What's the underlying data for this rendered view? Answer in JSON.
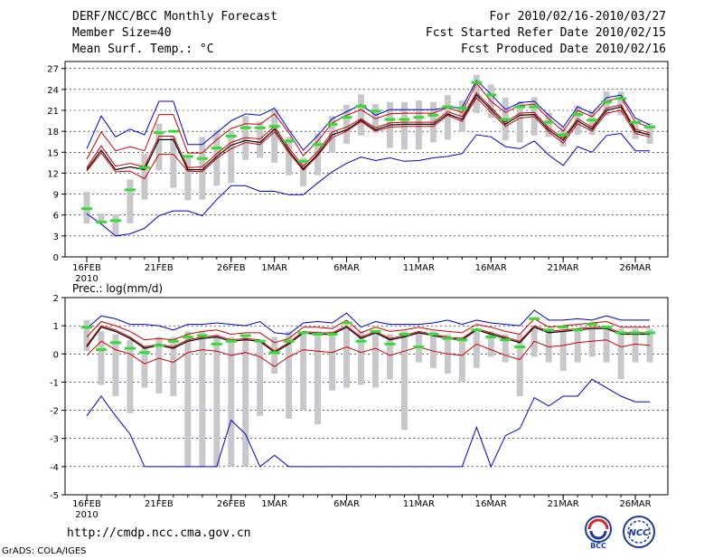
{
  "header": {
    "title": "DERF/NCC/BCC Monthly Forecast",
    "member_size": "Member Size=40",
    "variable": "Mean Surf. Temp.: °C",
    "period": "For 2010/02/16-2010/03/27",
    "refer": "Fcst Started Refer Date 2010/02/15",
    "produced": "Fcst Produced Date 2010/02/16"
  },
  "footer": {
    "url": "http://cmdp.ncc.cma.gov.cn",
    "grads": "GrADS: COLA/IGES",
    "logo1_text": "BCC",
    "logo2_text": "NCC"
  },
  "colors": {
    "mean": "#000000",
    "upper": "#0000cc",
    "lower": "#cc0000",
    "mid_red": "#cc0000",
    "box": "#c8c8cc",
    "obs": "#33dd33"
  },
  "chart_data": [
    {
      "type": "line",
      "title": "Mean Surf. Temp.: °C",
      "xlabel": "",
      "ylabel": "",
      "ylim": [
        0,
        28
      ],
      "yticks": [
        0,
        3,
        6,
        9,
        12,
        15,
        18,
        21,
        24,
        27
      ],
      "x": [
        1,
        2,
        3,
        4,
        5,
        6,
        7,
        8,
        9,
        10,
        11,
        12,
        13,
        14,
        15,
        16,
        17,
        18,
        19,
        20,
        21,
        22,
        23,
        24,
        25,
        26,
        27,
        28,
        29,
        30,
        31,
        32,
        33,
        34,
        35,
        36,
        37,
        38,
        39,
        40
      ],
      "xtick_labels": [
        {
          "x": 1,
          "label": "16FEB"
        },
        {
          "x": 6,
          "label": "21FEB"
        },
        {
          "x": 11,
          "label": "26FEB"
        },
        {
          "x": 14,
          "label": "1MAR"
        },
        {
          "x": 19,
          "label": "6MAR"
        },
        {
          "x": 24,
          "label": "11MAR"
        },
        {
          "x": 29,
          "label": "16MAR"
        },
        {
          "x": 34,
          "label": "21MAR"
        },
        {
          "x": 39,
          "label": "26MAR"
        }
      ],
      "year_label": "2010",
      "series": [
        {
          "name": "upper",
          "color": "#0000cc",
          "values": [
            15.5,
            20.2,
            17.2,
            18.3,
            17.5,
            22.3,
            22.3,
            16.1,
            16.1,
            17.8,
            19.5,
            20.5,
            20.3,
            21.3,
            18.2,
            15.3,
            17.4,
            19.8,
            20.8,
            21.8,
            20.3,
            21.1,
            21.1,
            21.1,
            21.1,
            21.4,
            21.4,
            25.3,
            23.3,
            21.1,
            22.1,
            22.3,
            20.3,
            18.6,
            21.5,
            20.6,
            22.8,
            23.2,
            19.9,
            18.9
          ]
        },
        {
          "name": "red_upper",
          "color": "#cc0000",
          "values": [
            14.0,
            17.9,
            15.2,
            15.8,
            15.2,
            20.4,
            20.4,
            14.9,
            14.9,
            16.8,
            18.4,
            19.1,
            19.0,
            20.5,
            17.8,
            14.5,
            16.6,
            19.2,
            20.3,
            21.1,
            19.8,
            20.5,
            20.6,
            20.6,
            20.6,
            21.4,
            20.7,
            24.9,
            22.3,
            20.7,
            21.7,
            21.9,
            19.8,
            18.0,
            21.0,
            20.1,
            22.3,
            22.9,
            19.3,
            18.6
          ]
        },
        {
          "name": "mean",
          "color": "#000000",
          "values": [
            12.5,
            15.3,
            12.5,
            12.9,
            12.5,
            16.8,
            16.8,
            12.5,
            12.5,
            14.4,
            16.0,
            16.7,
            16.4,
            18.3,
            15.2,
            12.6,
            14.7,
            17.5,
            18.2,
            19.6,
            18.2,
            18.9,
            19.0,
            19.0,
            19.0,
            20.5,
            19.7,
            23.2,
            21.1,
            19.0,
            20.3,
            20.4,
            18.2,
            16.7,
            19.5,
            18.3,
            21.0,
            21.5,
            18.0,
            17.5
          ]
        },
        {
          "name": "red_mid",
          "color": "#cc0000",
          "values": [
            12.8,
            15.9,
            13.0,
            13.4,
            12.9,
            17.3,
            17.3,
            12.8,
            12.9,
            14.8,
            16.4,
            17.1,
            16.9,
            18.7,
            15.6,
            13.0,
            15.1,
            17.9,
            18.6,
            19.8,
            18.5,
            19.2,
            19.3,
            19.3,
            19.3,
            20.8,
            20.1,
            23.5,
            21.4,
            19.3,
            20.6,
            20.7,
            18.5,
            17.0,
            19.8,
            18.6,
            21.3,
            21.8,
            18.3,
            17.8
          ]
        },
        {
          "name": "red_lower",
          "color": "#cc0000",
          "values": [
            12.3,
            14.9,
            12.2,
            12.3,
            11.2,
            14.7,
            14.7,
            12.3,
            12.2,
            14.1,
            15.5,
            16.4,
            16.1,
            17.9,
            14.9,
            12.4,
            14.5,
            17.1,
            18.0,
            19.4,
            18.0,
            18.6,
            18.7,
            18.7,
            18.7,
            20.3,
            19.4,
            22.8,
            20.7,
            18.7,
            19.9,
            20.1,
            17.9,
            16.3,
            19.1,
            18.0,
            20.6,
            21.0,
            17.7,
            17.2
          ]
        },
        {
          "name": "lower",
          "color": "#0000cc",
          "values": [
            6.2,
            4.7,
            3.0,
            3.3,
            4.1,
            5.9,
            6.6,
            6.6,
            5.9,
            8.2,
            10.2,
            10.2,
            9.4,
            9.4,
            8.9,
            8.9,
            10.6,
            12.2,
            13.4,
            14.3,
            13.8,
            14.2,
            13.7,
            13.8,
            14.2,
            14.4,
            14.8,
            17.5,
            17.2,
            15.8,
            15.5,
            16.6,
            14.6,
            13.1,
            15.8,
            15.0,
            17.4,
            17.7,
            15.2,
            15.2
          ]
        }
      ],
      "boxes": [
        [
          4.8,
          9.3
        ],
        [
          4.8,
          6.2
        ],
        [
          2.9,
          6.1
        ],
        [
          4.8,
          11.1
        ],
        [
          8.2,
          14.8
        ],
        [
          12.4,
          19.1
        ],
        [
          9.9,
          17.2
        ],
        [
          8.1,
          14.2
        ],
        [
          8.2,
          17.2
        ],
        [
          10.2,
          18.2
        ],
        [
          10.6,
          18.1
        ],
        [
          13.9,
          20.2
        ],
        [
          14.2,
          19.4
        ],
        [
          13.5,
          21.1
        ],
        [
          11.7,
          17.2
        ],
        [
          10.1,
          14.2
        ],
        [
          11.7,
          17.7
        ],
        [
          14.9,
          20.2
        ],
        [
          16.2,
          21.8
        ],
        [
          17.4,
          23.3
        ],
        [
          17.8,
          21.9
        ],
        [
          15.6,
          22.2
        ],
        [
          15.4,
          22.2
        ],
        [
          15.4,
          22.4
        ],
        [
          16.4,
          22.2
        ],
        [
          16.8,
          23.2
        ],
        [
          17.9,
          22.4
        ],
        [
          20.6,
          26.1
        ],
        [
          19.9,
          24.7
        ],
        [
          16.7,
          22.8
        ],
        [
          16.4,
          22.3
        ],
        [
          17.4,
          22.9
        ],
        [
          17.2,
          20.7
        ],
        [
          15.8,
          18.6
        ],
        [
          17.5,
          21.7
        ],
        [
          17.5,
          20.8
        ],
        [
          20.2,
          23.7
        ],
        [
          20.3,
          23.7
        ],
        [
          16.9,
          19.5
        ],
        [
          16.2,
          19.2
        ]
      ],
      "obs": [
        6.9,
        5.0,
        5.2,
        9.6,
        12.8,
        17.8,
        18.0,
        14.4,
        14.1,
        15.6,
        17.3,
        18.5,
        18.5,
        18.7,
        16.6,
        13.7,
        16.1,
        19.0,
        20.0,
        21.6,
        20.9,
        19.7,
        19.7,
        20.0,
        20.3,
        21.5,
        21.3,
        25.0,
        23.2,
        19.7,
        21.5,
        21.5,
        19.3,
        17.5,
        20.4,
        19.6,
        22.2,
        22.7,
        19.3,
        18.6
      ]
    },
    {
      "type": "line",
      "title": "Prec.: log(mm/d)",
      "xlabel": "",
      "ylabel": "",
      "ylim": [
        -5,
        2
      ],
      "yticks": [
        -5,
        -4,
        -3,
        -2,
        -1,
        0,
        1,
        2
      ],
      "x": [
        1,
        2,
        3,
        4,
        5,
        6,
        7,
        8,
        9,
        10,
        11,
        12,
        13,
        14,
        15,
        16,
        17,
        18,
        19,
        20,
        21,
        22,
        23,
        24,
        25,
        26,
        27,
        28,
        29,
        30,
        31,
        32,
        33,
        34,
        35,
        36,
        37,
        38,
        39,
        40
      ],
      "xtick_labels": [
        {
          "x": 1,
          "label": "16FEB"
        },
        {
          "x": 6,
          "label": "21FEB"
        },
        {
          "x": 11,
          "label": "26FEB"
        },
        {
          "x": 14,
          "label": "1MAR"
        },
        {
          "x": 19,
          "label": "6MAR"
        },
        {
          "x": 24,
          "label": "11MAR"
        },
        {
          "x": 29,
          "label": "16MAR"
        },
        {
          "x": 34,
          "label": "21MAR"
        },
        {
          "x": 39,
          "label": "26MAR"
        }
      ],
      "year_label": "2010",
      "series": [
        {
          "name": "upper",
          "color": "#0000cc",
          "values": [
            0.9,
            1.35,
            1.25,
            1.05,
            1.05,
            1.0,
            0.85,
            1.05,
            1.05,
            1.1,
            1.05,
            1.0,
            1.15,
            0.75,
            0.7,
            1.1,
            1.15,
            1.1,
            1.45,
            0.95,
            1.15,
            1.05,
            1.05,
            1.05,
            1.1,
            1.2,
            1.05,
            1.2,
            1.1,
            1.05,
            1.0,
            1.55,
            1.2,
            1.2,
            1.25,
            1.2,
            1.35,
            1.2,
            1.2,
            1.2
          ]
        },
        {
          "name": "mean",
          "color": "#000000",
          "values": [
            0.25,
            0.95,
            0.8,
            0.55,
            0.2,
            0.3,
            0.2,
            0.45,
            0.55,
            0.6,
            0.45,
            0.5,
            0.45,
            0.05,
            0.35,
            0.75,
            0.7,
            0.7,
            0.95,
            0.55,
            0.75,
            0.5,
            0.6,
            0.75,
            0.65,
            0.55,
            0.5,
            0.85,
            0.7,
            0.55,
            0.4,
            0.95,
            0.75,
            0.8,
            0.85,
            0.9,
            0.9,
            0.7,
            0.7,
            0.7
          ]
        },
        {
          "name": "red_mid",
          "color": "#cc0000",
          "values": [
            0.3,
            1.0,
            0.85,
            0.6,
            0.25,
            0.35,
            0.25,
            0.5,
            0.6,
            0.65,
            0.5,
            0.55,
            0.5,
            0.1,
            0.4,
            0.8,
            0.75,
            0.75,
            1.0,
            0.6,
            0.8,
            0.55,
            0.65,
            0.8,
            0.7,
            0.6,
            0.55,
            0.9,
            0.75,
            0.6,
            0.45,
            1.0,
            0.8,
            0.85,
            0.9,
            0.95,
            0.95,
            0.75,
            0.75,
            0.75
          ]
        },
        {
          "name": "red_lower",
          "color": "#cc0000",
          "values": [
            -0.05,
            0.45,
            0.15,
            0.0,
            -0.35,
            -0.15,
            -0.3,
            0.05,
            0.15,
            0.1,
            -0.05,
            0.05,
            -0.1,
            -0.45,
            -0.1,
            0.15,
            0.1,
            0.05,
            0.25,
            0.05,
            0.2,
            -0.05,
            0.1,
            0.25,
            0.1,
            0.0,
            -0.05,
            0.35,
            0.15,
            -0.05,
            -0.2,
            0.45,
            0.25,
            0.3,
            0.4,
            0.45,
            0.5,
            0.25,
            0.35,
            0.3
          ]
        },
        {
          "name": "lower",
          "color": "#0000cc",
          "values": [
            -2.2,
            -1.5,
            -2.2,
            -2.85,
            -4.0,
            -4.0,
            -4.0,
            -4.0,
            -4.0,
            -4.0,
            -2.35,
            -2.85,
            -4.0,
            -3.6,
            -4.0,
            -4.0,
            -4.0,
            -4.0,
            -4.0,
            -4.0,
            -4.0,
            -4.0,
            -4.0,
            -4.0,
            -4.0,
            -4.0,
            -4.0,
            -2.6,
            -4.0,
            -2.9,
            -2.65,
            -1.55,
            -1.85,
            -1.5,
            -1.5,
            -0.9,
            -1.2,
            -1.5,
            -1.7,
            -1.7
          ]
        },
        {
          "name": "red_upper",
          "color": "#cc0000",
          "values": [
            0.6,
            1.15,
            1.0,
            0.8,
            0.5,
            0.55,
            0.5,
            0.7,
            0.8,
            0.85,
            0.7,
            0.75,
            0.75,
            0.4,
            0.55,
            0.95,
            0.95,
            0.9,
            1.2,
            0.75,
            0.95,
            0.8,
            0.85,
            0.95,
            0.85,
            0.8,
            0.75,
            1.05,
            0.95,
            0.8,
            0.7,
            1.25,
            0.95,
            1.0,
            1.05,
            1.1,
            1.15,
            0.95,
            0.95,
            0.95
          ]
        }
      ],
      "boxes": [
        [
          0.1,
          1.2
        ],
        [
          -1.1,
          0.8
        ],
        [
          -1.5,
          0.7
        ],
        [
          -2.1,
          0.5
        ],
        [
          -1.2,
          0.3
        ],
        [
          -1.4,
          0.6
        ],
        [
          -1.5,
          0.6
        ],
        [
          -4.0,
          0.8
        ],
        [
          -4.0,
          0.8
        ],
        [
          -4.0,
          0.7
        ],
        [
          -4.0,
          0.6
        ],
        [
          -4.0,
          0.7
        ],
        [
          -2.2,
          0.4
        ],
        [
          -0.7,
          0.6
        ],
        [
          -2.3,
          0.8
        ],
        [
          -2.0,
          0.8
        ],
        [
          -2.5,
          0.8
        ],
        [
          -1.3,
          0.8
        ],
        [
          -1.2,
          0.9
        ],
        [
          -1.1,
          0.8
        ],
        [
          -1.2,
          0.8
        ],
        [
          -0.9,
          0.7
        ],
        [
          -2.7,
          0.8
        ],
        [
          -0.3,
          0.8
        ],
        [
          -0.5,
          0.8
        ],
        [
          -0.7,
          0.7
        ],
        [
          -1.0,
          0.6
        ],
        [
          -0.5,
          0.8
        ],
        [
          -0.1,
          0.8
        ],
        [
          -0.3,
          0.7
        ],
        [
          -1.5,
          0.7
        ],
        [
          -0.1,
          0.9
        ],
        [
          -0.3,
          0.8
        ],
        [
          -0.6,
          0.8
        ],
        [
          -0.3,
          0.8
        ],
        [
          -0.1,
          0.9
        ],
        [
          -0.3,
          1.0
        ],
        [
          -0.9,
          0.9
        ],
        [
          -0.3,
          0.9
        ],
        [
          -0.3,
          0.9
        ]
      ],
      "obs": [
        0.95,
        0.15,
        0.4,
        0.2,
        0.05,
        0.3,
        0.45,
        0.6,
        0.65,
        0.35,
        0.45,
        0.65,
        0.45,
        0.05,
        0.45,
        0.75,
        0.7,
        0.7,
        1.1,
        0.45,
        0.8,
        0.35,
        0.7,
        0.25,
        0.7,
        0.55,
        0.5,
        0.85,
        0.6,
        0.5,
        0.25,
        1.25,
        0.85,
        0.95,
        0.85,
        1.05,
        0.95,
        0.75,
        0.75,
        0.75
      ]
    }
  ]
}
